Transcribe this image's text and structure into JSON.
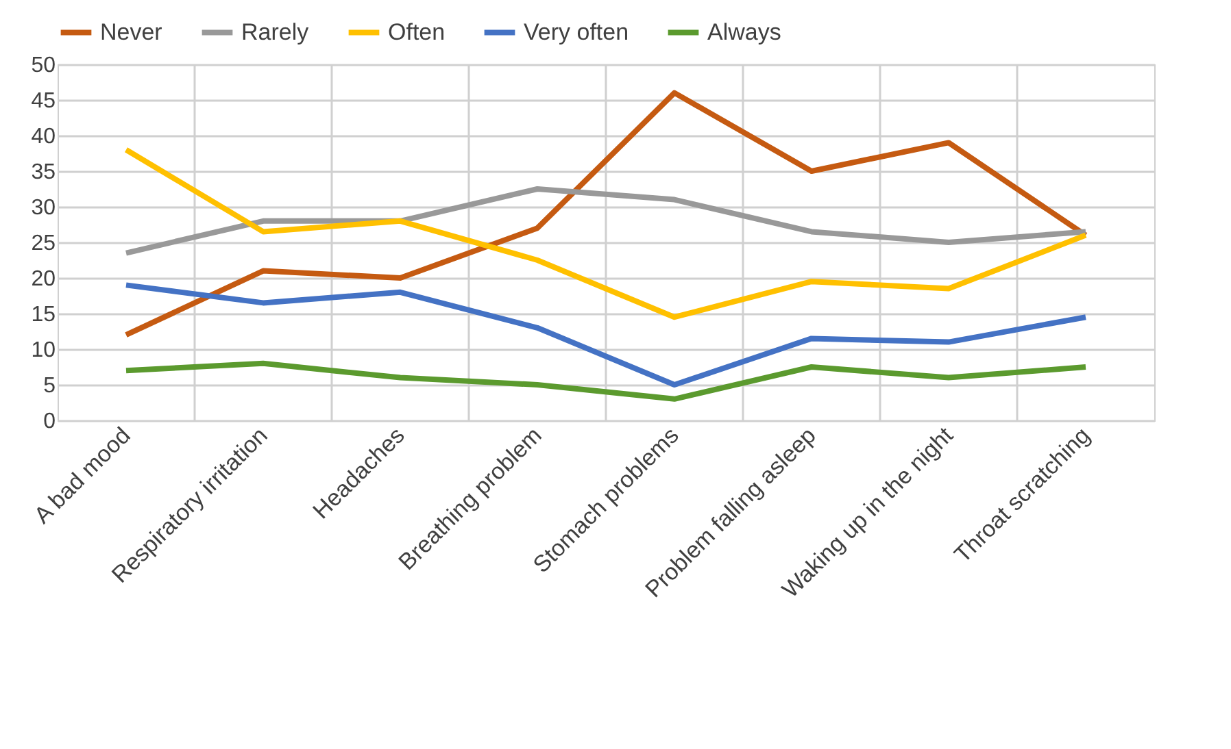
{
  "chart_data": {
    "type": "line",
    "categories": [
      "A bad mood",
      "Respiratory irritation",
      "Headaches",
      "Breathing problem",
      "Stomach problems",
      "Problem falling asleep",
      "Waking up in the night",
      "Throat scratching"
    ],
    "series": [
      {
        "name": "Never",
        "color": "#c55a11",
        "values": [
          12,
          21,
          20,
          27,
          46,
          35,
          39,
          26
        ]
      },
      {
        "name": "Rarely",
        "color": "#999999",
        "values": [
          23.5,
          28,
          28,
          32.5,
          31,
          26.5,
          25,
          26.5
        ]
      },
      {
        "name": "Often",
        "color": "#ffc000",
        "values": [
          38,
          26.5,
          28,
          22.5,
          14.5,
          19.5,
          18.5,
          26
        ]
      },
      {
        "name": "Very often",
        "color": "#4472c4",
        "values": [
          19,
          16.5,
          18,
          13,
          5,
          11.5,
          11,
          14.5
        ]
      },
      {
        "name": "Always",
        "color": "#5b9a2e",
        "values": [
          7,
          8,
          6,
          5,
          3,
          7.5,
          6,
          7.5
        ]
      }
    ],
    "ylim": [
      0,
      50
    ],
    "yticks": [
      0,
      5,
      10,
      15,
      20,
      25,
      30,
      35,
      40,
      45,
      50
    ],
    "grid": true,
    "legend": "top",
    "marker": "none",
    "line_style": "solid"
  }
}
